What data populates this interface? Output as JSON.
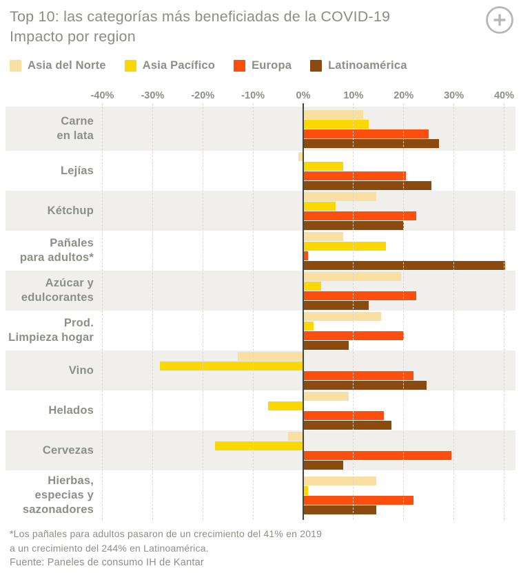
{
  "header": {
    "title_line1": "Top 10: las categorías más beneficiadas de la COVID-19",
    "title_line2": "Impacto por region"
  },
  "chart_data": {
    "type": "bar",
    "orientation": "horizontal",
    "title": "Top 10: las categorías más beneficiadas de la COVID-19 — Impacto por region",
    "unit": "%",
    "xlim": [
      -40,
      40
    ],
    "x_tick_values": [
      -40,
      -30,
      -20,
      -10,
      0,
      10,
      20,
      30,
      40
    ],
    "x_tick_labels": [
      "-40%",
      "-30%",
      "-20%",
      "-10%",
      "0%",
      "10%",
      "20%",
      "30%",
      "40%"
    ],
    "grid": "vertical-dashed",
    "legend_position": "top",
    "categories": [
      [
        "Carne",
        "en lata"
      ],
      [
        "Lejías"
      ],
      [
        "Kétchup"
      ],
      [
        "Pañales",
        "para adultos*"
      ],
      [
        "Azúcar y",
        "edulcorantes"
      ],
      [
        "Prod.",
        "Limpieza hogar"
      ],
      [
        "Vino"
      ],
      [
        "Helados"
      ],
      [
        "Cervezas"
      ],
      [
        "Hierbas,",
        "especias y",
        "sazonadores"
      ]
    ],
    "series": [
      {
        "name": "Asia del Norte",
        "color": "#f9dfa2",
        "values": [
          12,
          -1,
          14.5,
          8,
          19.5,
          15.5,
          -13,
          9,
          -3,
          14.5
        ]
      },
      {
        "name": "Asia Pacífico",
        "color": "#fbd802",
        "values": [
          13,
          8,
          6.5,
          16.5,
          3.5,
          2,
          -28.5,
          -7,
          -17.5,
          1
        ]
      },
      {
        "name": "Europa",
        "color": "#fc4e0c",
        "values": [
          25,
          20.5,
          22.5,
          1,
          22.5,
          20,
          22,
          16,
          29.5,
          22
        ]
      },
      {
        "name": "Latinoamérica",
        "color": "#8c4b0e",
        "values": [
          27,
          25.5,
          20,
          40.2,
          13,
          9,
          24.5,
          17.5,
          8,
          14.5
        ]
      }
    ]
  },
  "footnote": {
    "line1": "*Los pañales para adultos pasaron de un crecimiento del 41% en 2019",
    "line2": "a un crecimiento del 244% en Latinoamérica.",
    "source": "Fuente: Paneles de consumo IH de Kantar"
  }
}
